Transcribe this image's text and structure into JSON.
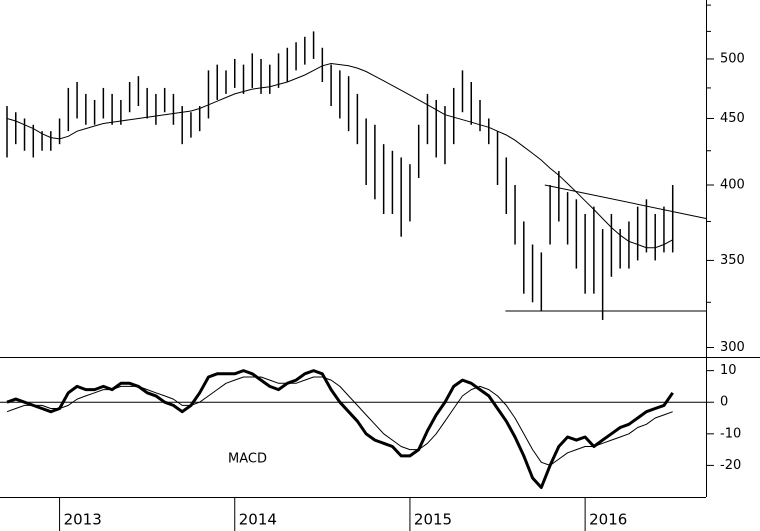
{
  "chart_data": [
    {
      "type": "stock",
      "log": true,
      "color": "#000000",
      "xlim": [
        2012.66,
        2016.69
      ],
      "ylim": [
        295,
        555
      ],
      "yticks": [
        300,
        350,
        400,
        450,
        500
      ],
      "yminorticks": [
        325,
        375,
        425,
        475,
        525,
        550
      ],
      "x": [
        2012.7,
        2012.75,
        2012.8,
        2012.85,
        2012.9,
        2012.95,
        2013.0,
        2013.05,
        2013.1,
        2013.15,
        2013.2,
        2013.25,
        2013.3,
        2013.35,
        2013.4,
        2013.45,
        2013.5,
        2013.55,
        2013.6,
        2013.65,
        2013.7,
        2013.75,
        2013.8,
        2013.85,
        2013.9,
        2013.95,
        2014.0,
        2014.05,
        2014.1,
        2014.15,
        2014.2,
        2014.25,
        2014.3,
        2014.35,
        2014.4,
        2014.45,
        2014.5,
        2014.55,
        2014.6,
        2014.65,
        2014.7,
        2014.75,
        2014.8,
        2014.85,
        2014.9,
        2014.95,
        2015.0,
        2015.05,
        2015.1,
        2015.15,
        2015.2,
        2015.25,
        2015.3,
        2015.35,
        2015.4,
        2015.45,
        2015.5,
        2015.55,
        2015.6,
        2015.65,
        2015.7,
        2015.75,
        2015.8,
        2015.85,
        2015.9,
        2015.95,
        2016.0,
        2016.05,
        2016.1,
        2016.15,
        2016.2,
        2016.25,
        2016.3,
        2016.35,
        2016.4,
        2016.45,
        2016.5
      ],
      "high": [
        460,
        455,
        450,
        445,
        440,
        440,
        450,
        475,
        480,
        470,
        465,
        475,
        470,
        465,
        480,
        485,
        475,
        470,
        475,
        470,
        460,
        455,
        460,
        490,
        495,
        490,
        500,
        495,
        505,
        500,
        495,
        505,
        510,
        515,
        520,
        525,
        510,
        495,
        490,
        485,
        470,
        450,
        445,
        430,
        425,
        420,
        415,
        445,
        470,
        465,
        460,
        475,
        490,
        480,
        465,
        450,
        440,
        420,
        400,
        375,
        360,
        355,
        400,
        410,
        395,
        390,
        380,
        385,
        370,
        380,
        370,
        375,
        385,
        390,
        380,
        385,
        400
      ],
      "low": [
        420,
        430,
        425,
        420,
        425,
        425,
        430,
        440,
        450,
        445,
        445,
        450,
        445,
        445,
        455,
        460,
        450,
        445,
        455,
        445,
        430,
        435,
        440,
        450,
        465,
        470,
        475,
        470,
        475,
        470,
        470,
        475,
        480,
        490,
        495,
        500,
        480,
        460,
        450,
        440,
        430,
        400,
        390,
        380,
        380,
        365,
        375,
        405,
        430,
        420,
        415,
        430,
        455,
        445,
        440,
        430,
        400,
        380,
        360,
        330,
        325,
        320,
        360,
        375,
        360,
        345,
        330,
        330,
        315,
        340,
        345,
        345,
        350,
        355,
        350,
        355,
        355
      ],
      "ma": [
        450,
        448,
        445,
        442,
        438,
        435,
        434,
        436,
        440,
        442,
        444,
        446,
        447,
        448,
        449,
        450,
        451,
        452,
        453,
        454,
        455,
        456,
        458,
        461,
        464,
        467,
        470,
        472,
        474,
        475,
        476,
        478,
        480,
        483,
        486,
        490,
        494,
        496,
        495,
        494,
        492,
        489,
        485,
        481,
        477,
        473,
        469,
        465,
        461,
        457,
        453,
        451,
        449,
        447,
        445,
        443,
        440,
        437,
        433,
        428,
        423,
        418,
        412,
        407,
        401,
        395,
        389,
        383,
        377,
        371,
        366,
        362,
        360,
        358,
        358,
        360,
        363
      ],
      "trendlines": [
        {
          "x": [
            2015.77,
            2016.69
          ],
          "y": [
            400,
            377
          ]
        },
        {
          "x": [
            2015.545,
            2016.69
          ],
          "y": [
            320,
            320
          ]
        }
      ]
    },
    {
      "type": "line",
      "annotation": "MACD",
      "color": "#000000",
      "xlim": [
        2012.66,
        2016.69
      ],
      "ylim": [
        -30,
        14
      ],
      "yticks": [
        -20,
        -10,
        0,
        10
      ],
      "xticks": [
        2013,
        2014,
        2015,
        2016
      ],
      "zero_line": true,
      "lines": [
        {
          "width": 3,
          "values": [
            0,
            1,
            0,
            -1,
            -2,
            -3,
            -2,
            3,
            5,
            4,
            4,
            5,
            4,
            6,
            6,
            5,
            3,
            2,
            0,
            -1,
            -3,
            -1,
            3,
            8,
            9,
            9,
            9,
            10,
            9,
            7,
            5,
            4,
            6,
            7,
            9,
            10,
            9,
            4,
            0,
            -3,
            -6,
            -10,
            -12,
            -13,
            -14,
            -17,
            -17,
            -15,
            -9,
            -4,
            0,
            5,
            7,
            6,
            4,
            2,
            -2,
            -6,
            -11,
            -17,
            -24,
            -27,
            -20,
            -14,
            -11,
            -12,
            -11,
            -14,
            -12,
            -10,
            -8,
            -7,
            -5,
            -3,
            -2,
            -1,
            3
          ]
        },
        {
          "width": 1,
          "values": [
            -3,
            -2,
            -1,
            -1,
            -1,
            -2,
            -2,
            -1,
            1,
            2,
            3,
            4,
            4,
            5,
            5,
            5,
            4,
            3,
            2,
            1,
            -1,
            -1,
            0,
            2,
            4,
            6,
            7,
            8,
            8,
            8,
            7,
            6,
            6,
            6,
            7,
            8,
            8,
            7,
            5,
            2,
            -1,
            -4,
            -7,
            -10,
            -12,
            -14,
            -15,
            -15,
            -13,
            -10,
            -6,
            -2,
            2,
            4,
            5,
            4,
            2,
            -1,
            -5,
            -10,
            -15,
            -19,
            -20,
            -18,
            -16,
            -15,
            -14,
            -14,
            -13,
            -12,
            -11,
            -10,
            -8,
            -7,
            -5,
            -4,
            -3
          ]
        }
      ]
    }
  ]
}
